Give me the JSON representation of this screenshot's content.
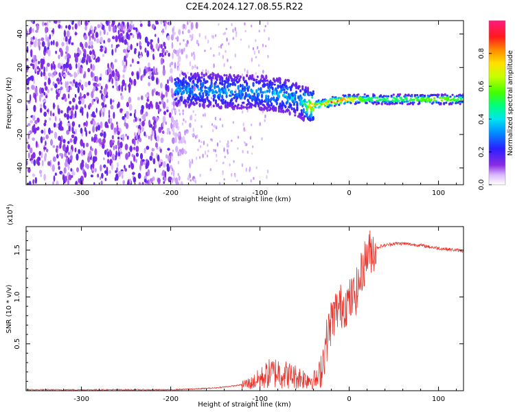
{
  "figure": {
    "title": "C2E4.2024.127.08.55.R22"
  },
  "chart_data": [
    {
      "type": "heatmap",
      "xlabel": "Height of straight line (km)",
      "ylabel": "Frequency (Hz)",
      "xlim": [
        -362,
        128
      ],
      "ylim": [
        -50,
        48
      ],
      "xticks": [
        -300,
        -200,
        -100,
        0,
        100
      ],
      "yticks": [
        -40,
        -20,
        0,
        20,
        40
      ],
      "colorbar": {
        "label": "Normalized spectral amplitude",
        "range": [
          0.0,
          1.0
        ],
        "ticks": [
          0.0,
          0.2,
          0.4,
          0.6,
          0.8
        ],
        "colormap": "rainbow (white-violet-blue-cyan-green-yellow-orange-red-magenta)"
      },
      "noise_region_x": [
        -362,
        -200
      ],
      "signal_band": {
        "x": [
          -195,
          -150,
          -100,
          -70,
          -55,
          -45,
          -30,
          -15,
          0,
          20,
          60,
          100,
          128
        ],
        "center_freq": [
          7,
          6,
          5,
          3,
          0,
          -3,
          -2,
          0,
          1,
          1,
          1,
          1,
          1
        ],
        "peak_amplitude": [
          0.35,
          0.35,
          0.35,
          0.4,
          0.35,
          0.7,
          0.9,
          0.9,
          0.7,
          0.5,
          0.5,
          0.6,
          0.5
        ]
      },
      "grid": false
    },
    {
      "type": "line",
      "xlabel": "Height of straight line (km)",
      "ylabel": "SNR (10 * v/v)",
      "multiplier_label": "(x10",
      "multiplier_exp": "4",
      "multiplier_close": ")",
      "xlim": [
        -362,
        128
      ],
      "ylim": [
        0,
        1.75
      ],
      "xticks": [
        -300,
        -200,
        -100,
        0,
        100
      ],
      "yticks": [
        0.5,
        1.0,
        1.5
      ],
      "ytick_labels": [
        "0.5",
        "1.0",
        "1.5"
      ],
      "series": [
        {
          "color": "#e8322a",
          "x": [
            -362,
            -300,
            -250,
            -200,
            -170,
            -150,
            -130,
            -110,
            -100,
            -90,
            -80,
            -70,
            -60,
            -50,
            -40,
            -35,
            -30,
            -25,
            -20,
            -15,
            -10,
            -5,
            0,
            5,
            10,
            15,
            20,
            25,
            30,
            35,
            40,
            50,
            60,
            80,
            100,
            128
          ],
          "y": [
            0.01,
            0.01,
            0.01,
            0.01,
            0.02,
            0.03,
            0.05,
            0.08,
            0.13,
            0.18,
            0.2,
            0.17,
            0.15,
            0.13,
            0.12,
            0.12,
            0.3,
            0.55,
            0.75,
            0.85,
            0.9,
            0.92,
            0.95,
            1.0,
            1.1,
            1.3,
            1.45,
            1.5,
            1.52,
            1.54,
            1.55,
            1.57,
            1.57,
            1.55,
            1.52,
            1.49
          ]
        }
      ],
      "grid": false
    }
  ]
}
